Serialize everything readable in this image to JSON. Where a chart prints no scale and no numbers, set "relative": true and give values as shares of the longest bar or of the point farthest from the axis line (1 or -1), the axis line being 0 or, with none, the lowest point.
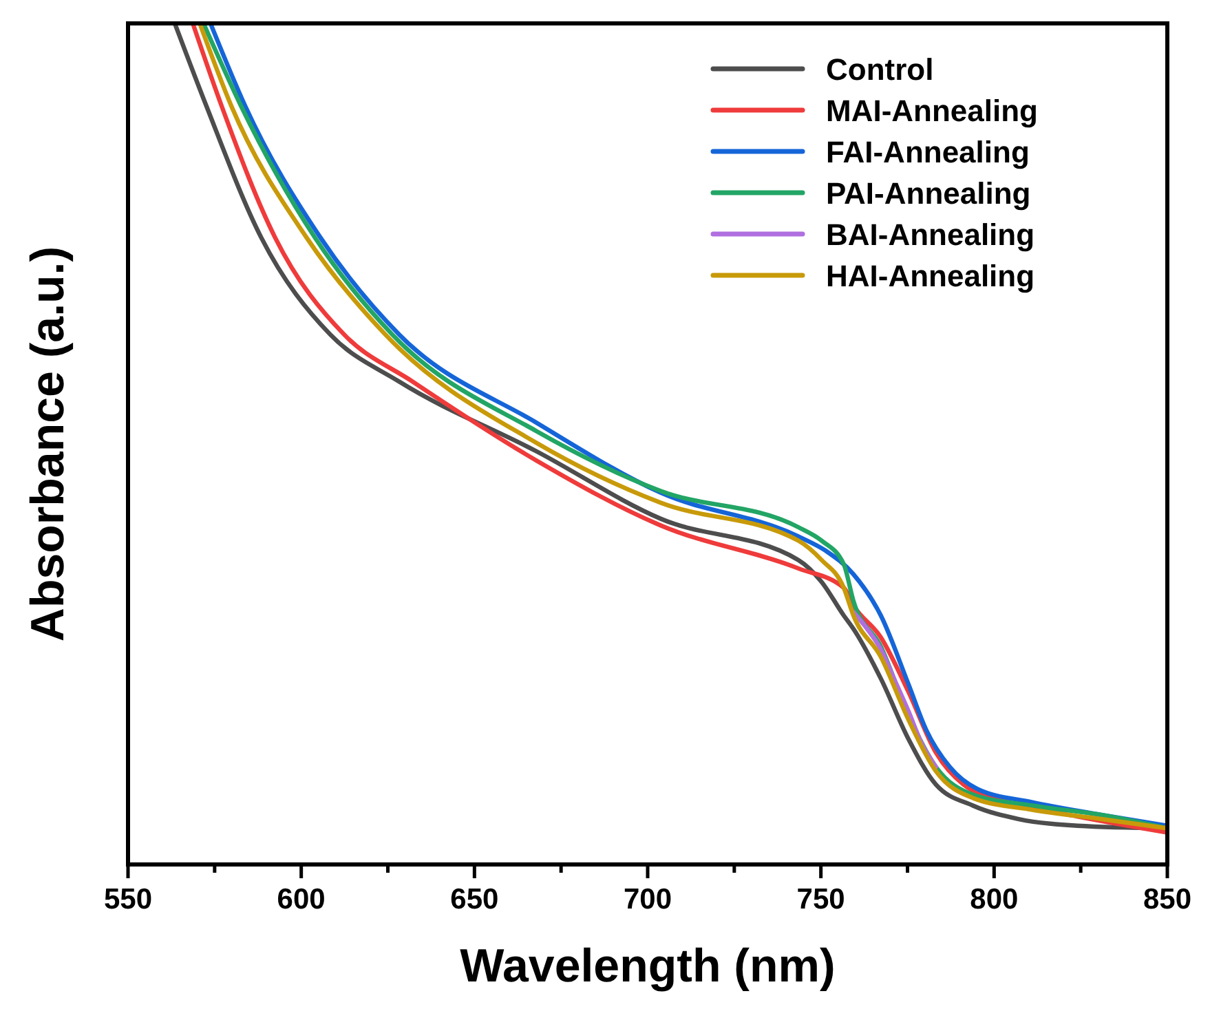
{
  "chart_data": {
    "type": "line",
    "relative": true,
    "xlabel": "Wavelength (nm)",
    "ylabel": "Absorbance (a.u.)",
    "xlim": [
      550,
      850
    ],
    "xticks": [
      550,
      {
        "value": 575,
        "label": null
      },
      600,
      {
        "value": 625,
        "label": null
      },
      650,
      {
        "value": 675,
        "label": null
      },
      700,
      {
        "value": 725,
        "label": null
      },
      750,
      {
        "value": 775,
        "label": null
      },
      800,
      {
        "value": 825,
        "label": null
      },
      850
    ],
    "legend": "top right",
    "grid": false,
    "line_style": "solid",
    "marker": "none",
    "series": [
      {
        "name": "Control",
        "color": "#4d4d4d",
        "x": [
          563.5,
          572.6,
          588.5,
          608.4,
          628.3,
          668.0,
          703.8,
          743.5,
          750.2,
          756.6,
          759.4,
          767.3,
          775.3,
          783.2,
          793.9,
          807.1,
          824.1,
          849.6
        ],
        "values": [
          1.0,
          0.902,
          0.745,
          0.63,
          0.574,
          0.491,
          0.411,
          0.362,
          0.336,
          0.296,
          0.28,
          0.221,
          0.149,
          0.095,
          0.07,
          0.054,
          0.046,
          0.043
        ]
      },
      {
        "name": "MAI-Annealing",
        "color": "#ef3b3b",
        "x": [
          568.7,
          577.0,
          592.5,
          612.4,
          632.2,
          668.0,
          703.8,
          743.5,
          756.6,
          759.4,
          767.3,
          775.3,
          783.2,
          791.2,
          804.3,
          824.1,
          850.0
        ],
        "values": [
          1.0,
          0.902,
          0.745,
          0.63,
          0.574,
          0.48,
          0.403,
          0.352,
          0.329,
          0.308,
          0.27,
          0.205,
          0.133,
          0.095,
          0.074,
          0.057,
          0.038
        ]
      },
      {
        "name": "FAI-Annealing",
        "color": "#1565d8",
        "x": [
          573.8,
          583.8,
          605.6,
          628.3,
          668.0,
          703.8,
          743.5,
          751.4,
          759.4,
          767.3,
          775.3,
          780.4,
          787.2,
          795.1,
          811.0,
          830.9,
          850.0
        ],
        "values": [
          1.0,
          0.902,
          0.745,
          0.63,
          0.525,
          0.442,
          0.39,
          0.373,
          0.345,
          0.296,
          0.214,
          0.16,
          0.116,
          0.09,
          0.074,
          0.059,
          0.046
        ]
      },
      {
        "name": "PAI-Annealing",
        "color": "#22a565",
        "x": [
          571.8,
          582.6,
          604.0,
          626.3,
          668.0,
          703.8,
          743.5,
          750.2,
          756.6,
          759.4,
          767.3,
          775.3,
          783.2,
          793.9,
          811.0,
          830.9,
          850.0
        ],
        "values": [
          1.0,
          0.902,
          0.745,
          0.63,
          0.515,
          0.444,
          0.401,
          0.385,
          0.357,
          0.313,
          0.259,
          0.177,
          0.116,
          0.083,
          0.07,
          0.059,
          0.043
        ]
      },
      {
        "name": "BAI-Annealing",
        "color": "#b06fe0",
        "x": [
          759.4,
          763.0,
          767.3,
          771.0,
          775.3,
          779.0,
          783.2
        ],
        "values": [
          0.3,
          0.282,
          0.256,
          0.222,
          0.182,
          0.145,
          0.116
        ]
      },
      {
        "name": "HAI-Annealing",
        "color": "#c89a0a",
        "x": [
          570.7,
          579.8,
          601.6,
          624.3,
          668.0,
          703.8,
          743.5,
          750.2,
          756.6,
          759.4,
          767.3,
          775.3,
          783.2,
          793.9,
          811.0,
          830.9,
          850.0
        ],
        "values": [
          1.0,
          0.902,
          0.745,
          0.63,
          0.501,
          0.43,
          0.385,
          0.362,
          0.329,
          0.296,
          0.247,
          0.172,
          0.111,
          0.079,
          0.065,
          0.054,
          0.043
        ]
      }
    ]
  }
}
